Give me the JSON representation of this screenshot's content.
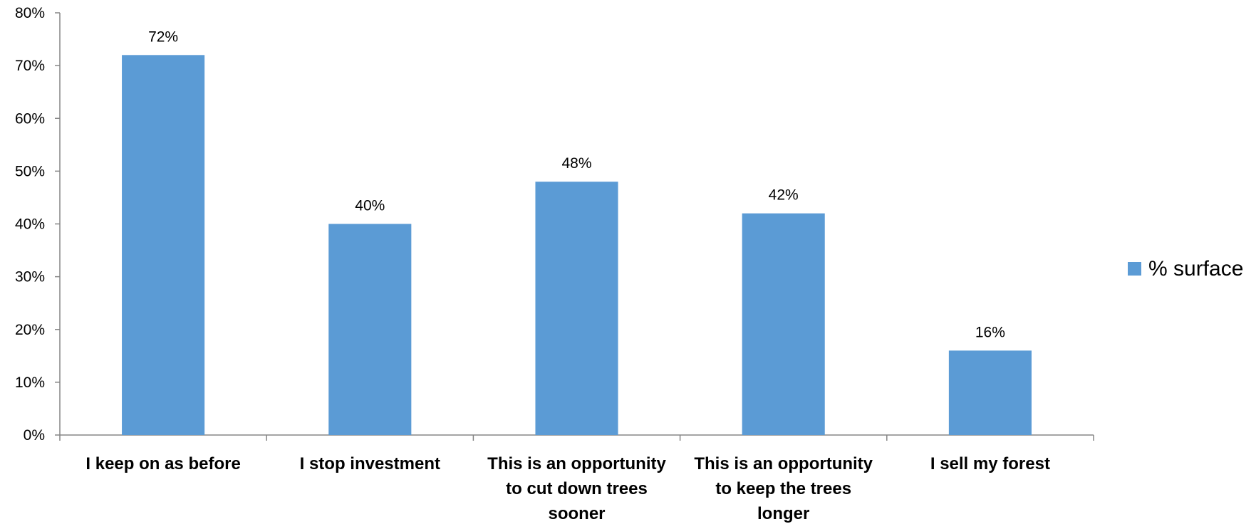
{
  "chart_data": {
    "type": "bar",
    "categories": [
      [
        "I keep on as before"
      ],
      [
        "I stop investment"
      ],
      [
        "This is an opportunity",
        "to cut down trees",
        "sooner"
      ],
      [
        "This is an opportunity",
        "to keep the trees",
        "longer"
      ],
      [
        "I sell my forest"
      ]
    ],
    "series": [
      {
        "name": "% surface",
        "values": [
          72,
          40,
          48,
          42,
          16
        ],
        "color": "#5b9bd5"
      }
    ],
    "data_labels": [
      "72%",
      "40%",
      "48%",
      "42%",
      "16%"
    ],
    "ylim": [
      0,
      80
    ],
    "yticks": [
      0,
      10,
      20,
      30,
      40,
      50,
      60,
      70,
      80
    ],
    "ytick_labels": [
      "0%",
      "10%",
      "20%",
      "30%",
      "40%",
      "50%",
      "60%",
      "70%",
      "80%"
    ],
    "title": "",
    "xlabel": "",
    "ylabel": "",
    "grid": false,
    "legend_position": "right"
  }
}
